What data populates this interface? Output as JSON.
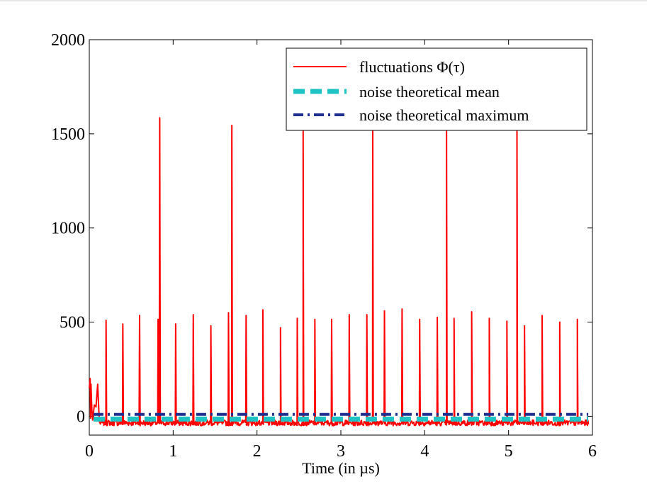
{
  "chart_data": {
    "type": "line",
    "title": "",
    "xlabel": "Time (in µs)",
    "ylabel": "",
    "xlim": [
      0,
      6
    ],
    "ylim": [
      -100,
      2000
    ],
    "x_ticks": [
      "0",
      "1",
      "2",
      "3",
      "4",
      "5",
      "6"
    ],
    "y_ticks": [
      "0",
      "500",
      "1000",
      "1500",
      "2000"
    ],
    "grid": false,
    "legend_position": "top-right",
    "series": [
      {
        "name": "fluctuations Φ(τ)",
        "color": "#ff0000",
        "line_style": "solid",
        "baseline_range": [
          -50,
          -20
        ],
        "start_transient": [
          [
            0.0,
            150
          ],
          [
            0.01,
            200
          ],
          [
            0.015,
            -10
          ],
          [
            0.02,
            170
          ],
          [
            0.03,
            40
          ],
          [
            0.04,
            -20
          ],
          [
            0.06,
            60
          ],
          [
            0.08,
            50
          ],
          [
            0.1,
            170
          ],
          [
            0.12,
            -30
          ]
        ],
        "peaks": [
          [
            0.2,
            510
          ],
          [
            0.4,
            490
          ],
          [
            0.6,
            535
          ],
          [
            0.82,
            515
          ],
          [
            0.84,
            1585
          ],
          [
            1.03,
            490
          ],
          [
            1.24,
            540
          ],
          [
            1.45,
            480
          ],
          [
            1.66,
            550
          ],
          [
            1.7,
            1545
          ],
          [
            1.87,
            535
          ],
          [
            2.07,
            565
          ],
          [
            2.28,
            470
          ],
          [
            2.48,
            520
          ],
          [
            2.55,
            1580
          ],
          [
            2.69,
            515
          ],
          [
            2.89,
            515
          ],
          [
            3.1,
            540
          ],
          [
            3.31,
            540
          ],
          [
            3.38,
            1580
          ],
          [
            3.52,
            560
          ],
          [
            3.73,
            570
          ],
          [
            3.94,
            515
          ],
          [
            4.15,
            525
          ],
          [
            4.26,
            1580
          ],
          [
            4.35,
            520
          ],
          [
            4.56,
            555
          ],
          [
            4.77,
            520
          ],
          [
            4.98,
            505
          ],
          [
            5.1,
            1580
          ],
          [
            5.19,
            480
          ],
          [
            5.4,
            535
          ],
          [
            5.61,
            500
          ],
          [
            5.82,
            515
          ]
        ]
      },
      {
        "name": "noise theoretical mean",
        "color": "#1fc3c3",
        "line_style": "dashed",
        "y": -15,
        "x_range": [
          0.05,
          5.95
        ]
      },
      {
        "name": "noise theoretical maximum",
        "color": "#1f2f8f",
        "line_style": "dash-dot",
        "y": 10,
        "x_range": [
          0.05,
          5.95
        ]
      }
    ]
  }
}
